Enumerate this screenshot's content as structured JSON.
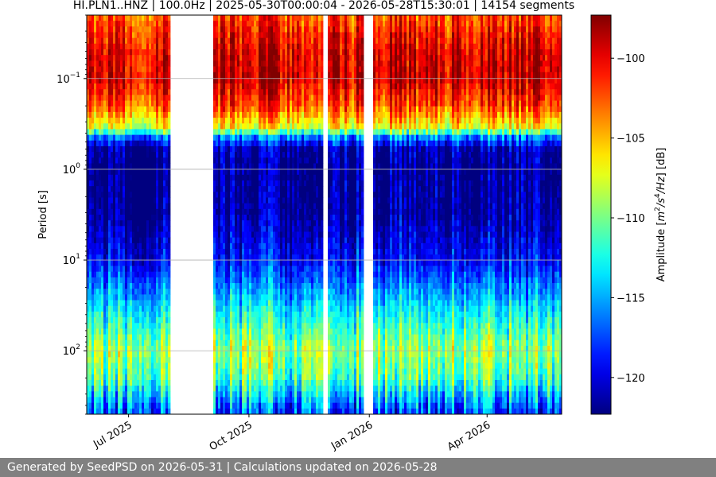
{
  "chart_data": {
    "type": "heatmap",
    "title": "HI.PLN1..HNZ | 100.0Hz | 2025-05-30T00:00:04 - 2026-05-28T15:30:01 | 14154 segments",
    "xlabel": "",
    "ylabel": "Period [s]",
    "x_axis": {
      "type": "date",
      "range": [
        "2025-05-30",
        "2026-05-28"
      ],
      "ticks": [
        {
          "date": "2025-07-01",
          "label": "Jul 2025"
        },
        {
          "date": "2025-10-01",
          "label": "Oct 2025"
        },
        {
          "date": "2026-01-01",
          "label": "Jan 2026"
        },
        {
          "date": "2026-04-01",
          "label": "Apr 2026"
        }
      ]
    },
    "y_axis": {
      "scale": "log",
      "inverted": true,
      "range": [
        0.02,
        500
      ],
      "grid": true,
      "ticks": [
        {
          "value": 0.1,
          "base": "10",
          "exp": "−1"
        },
        {
          "value": 1,
          "base": "10",
          "exp": "0"
        },
        {
          "value": 10,
          "base": "10",
          "exp": "1"
        },
        {
          "value": 100,
          "base": "10",
          "exp": "2"
        }
      ]
    },
    "data_gaps": [
      {
        "start": "2025-08-01",
        "end": "2025-09-04"
      },
      {
        "start": "2025-11-27",
        "end": "2025-11-30"
      },
      {
        "start": "2025-12-28",
        "end": "2026-01-03"
      }
    ],
    "amplitude_profile": {
      "period_s": [
        0.02,
        0.05,
        0.1,
        0.2,
        0.35,
        0.45,
        0.6,
        1,
        3,
        10,
        30,
        60,
        100,
        200,
        500
      ],
      "amplitude_db": [
        -102,
        -99.5,
        -99,
        -102,
        -107,
        -116,
        -121,
        -122,
        -121.5,
        -119,
        -114,
        -111,
        -109,
        -111,
        -118
      ]
    },
    "colorbar": {
      "label": "Amplitude [m²/s⁴/Hz] [dB]",
      "label_parts": [
        "Amplitude [",
        "m",
        "2",
        "/",
        "s",
        "4",
        "/",
        "Hz",
        "] [dB]"
      ],
      "colormap": "jet",
      "range": [
        -122.3,
        -97.3
      ],
      "ticks": [
        {
          "value": -100,
          "label": "−100"
        },
        {
          "value": -105,
          "label": "−105"
        },
        {
          "value": -110,
          "label": "−110"
        },
        {
          "value": -115,
          "label": "−115"
        },
        {
          "value": -120,
          "label": "−120"
        }
      ]
    }
  },
  "footer": {
    "text": "Generated by SeedPSD on 2026-05-31 | Calculations updated on 2026-05-28"
  }
}
